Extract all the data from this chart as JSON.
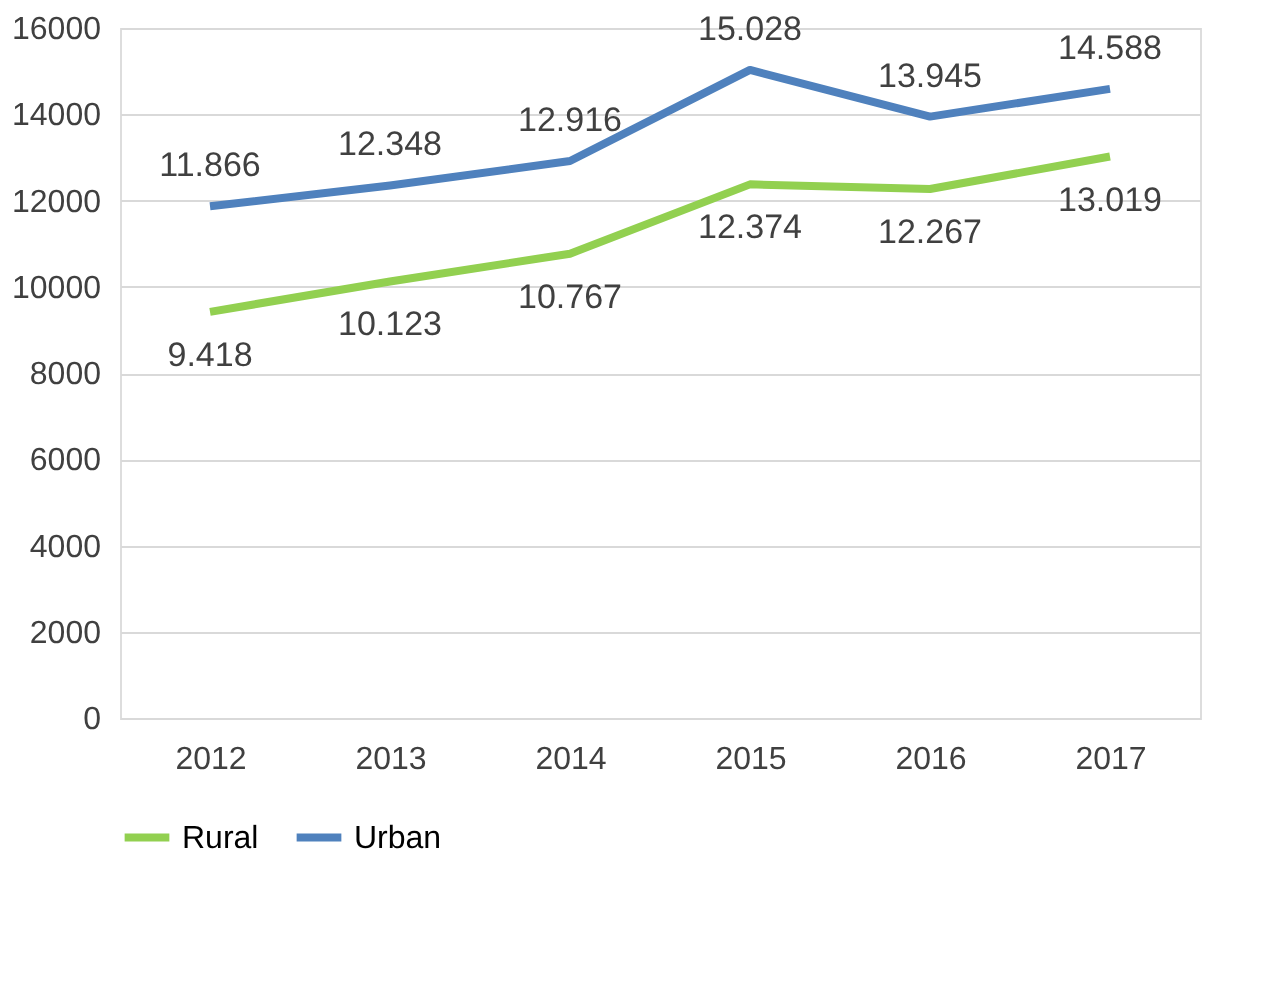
{
  "chart_data": {
    "type": "line",
    "categories": [
      "2012",
      "2013",
      "2014",
      "2015",
      "2016",
      "2017"
    ],
    "series": [
      {
        "name": "Rural",
        "color": "#92d050",
        "values": [
          9418,
          10123,
          10767,
          12374,
          12267,
          13019
        ],
        "value_labels": [
          "9.418",
          "10.123",
          "10.767",
          "12.374",
          "12.267",
          "13.019"
        ]
      },
      {
        "name": "Urban",
        "color": "#4f81bd",
        "values": [
          11866,
          12348,
          12916,
          15028,
          13945,
          14588
        ],
        "value_labels": [
          "11.866",
          "12.348",
          "12.916",
          "15.028",
          "13.945",
          "14.588"
        ]
      }
    ],
    "ylim": [
      0,
      16000
    ],
    "yticks": [
      0,
      2000,
      4000,
      6000,
      8000,
      10000,
      12000,
      14000,
      16000
    ],
    "grid": "y",
    "legend": "bottom",
    "marker": "none",
    "line_style": "solid"
  }
}
